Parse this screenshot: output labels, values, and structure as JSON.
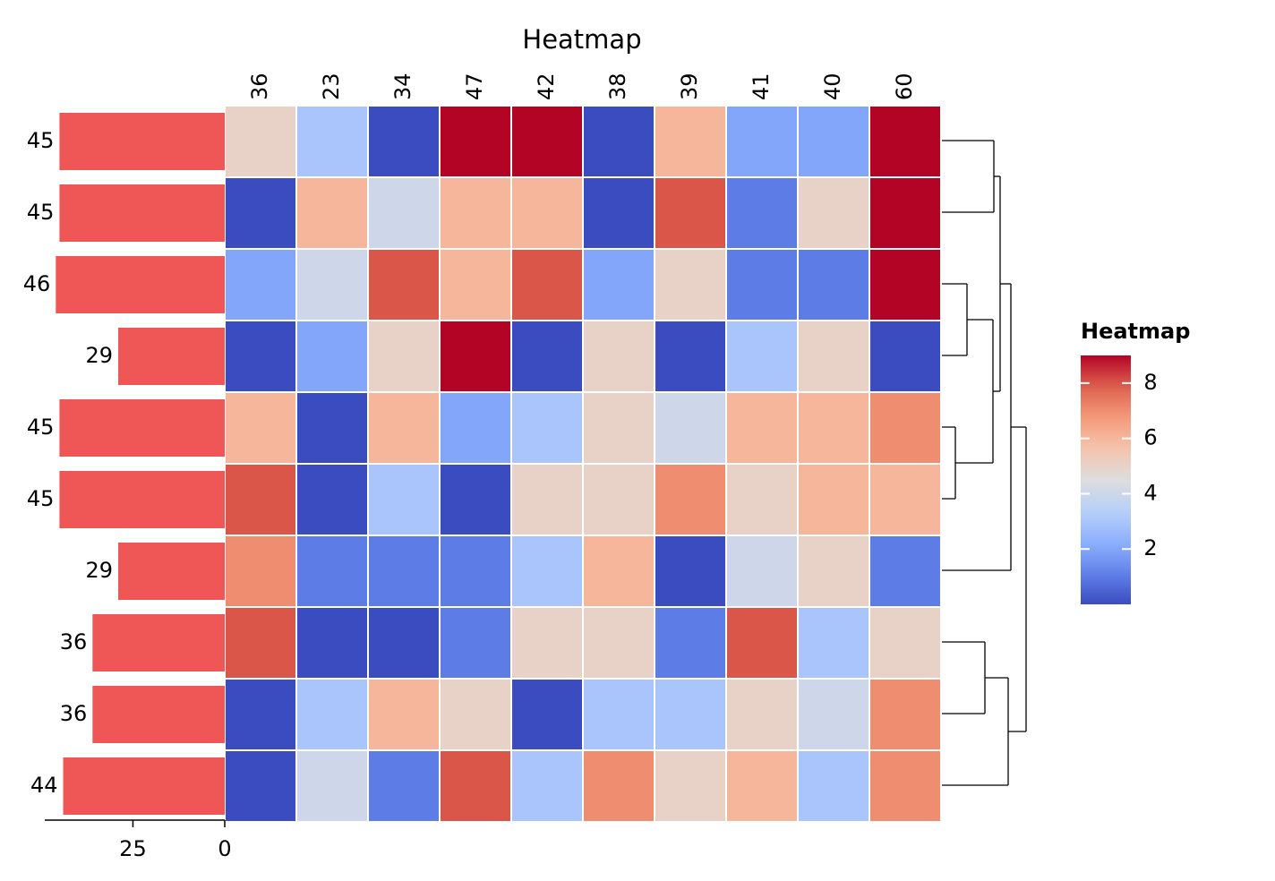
{
  "chart_data": [
    {
      "type": "heatmap",
      "title": "Heatmap",
      "categories": [
        "36",
        "23",
        "34",
        "47",
        "42",
        "38",
        "39",
        "41",
        "40",
        "60"
      ],
      "values": [
        [
          5,
          3,
          0,
          9,
          9,
          0,
          6,
          2,
          2,
          9
        ],
        [
          0,
          6,
          4,
          6,
          6,
          0,
          8,
          1,
          5,
          9
        ],
        [
          2,
          4,
          8,
          6,
          8,
          2,
          5,
          1,
          1,
          9
        ],
        [
          0,
          2,
          5,
          9,
          0,
          5,
          0,
          3,
          5,
          0
        ],
        [
          6,
          0,
          6,
          2,
          3,
          5,
          4,
          6,
          6,
          7
        ],
        [
          8,
          0,
          3,
          0,
          5,
          5,
          7,
          5,
          6,
          6
        ],
        [
          7,
          1,
          1,
          1,
          3,
          6,
          0,
          4,
          5,
          1
        ],
        [
          8,
          0,
          0,
          1,
          5,
          5,
          1,
          8,
          3,
          5
        ],
        [
          0,
          3,
          6,
          5,
          0,
          3,
          3,
          5,
          4,
          7
        ],
        [
          0,
          4,
          1,
          8,
          3,
          7,
          5,
          6,
          3,
          7
        ]
      ],
      "cmap": "coolwarm",
      "zlim": [
        0,
        9
      ],
      "colorbar_title": "Heatmap",
      "colorbar_ticks": [
        2,
        4,
        6,
        8
      ]
    },
    {
      "type": "bar",
      "orientation": "horizontal",
      "color": "#ef5656",
      "values": [
        45,
        45,
        46,
        29,
        45,
        45,
        29,
        36,
        36,
        44
      ],
      "xlim": [
        49,
        0
      ],
      "xticks": [
        25,
        0
      ]
    }
  ]
}
